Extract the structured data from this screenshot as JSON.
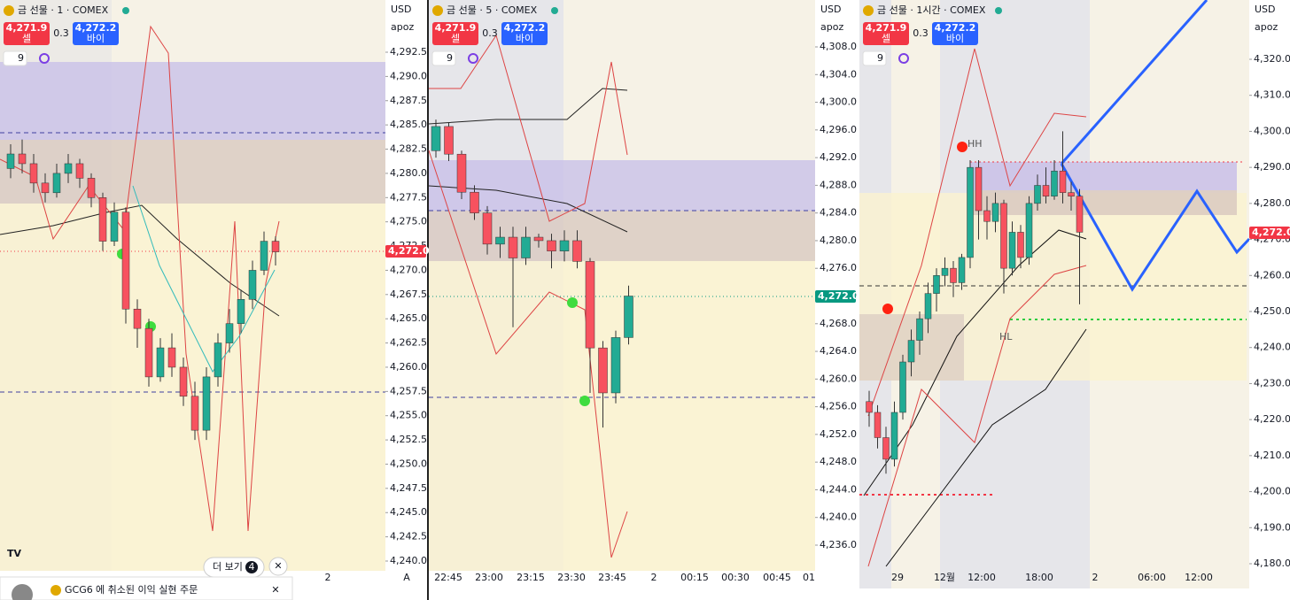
{
  "panels": [
    {
      "title": "금 선물 · 1 · COMEX",
      "sell_price": "4,271.9",
      "sell_label": "셀",
      "spread": "0.3",
      "buy_price": "4,272.2",
      "buy_label": "바이",
      "interval": "9",
      "currency": "USD",
      "scale_name": "apoz",
      "price_tag": "4,272.0",
      "yticks": [
        {
          "value": 4240.0,
          "label": "4,240.0"
        },
        {
          "value": 4242.5,
          "label": "4,242.5"
        },
        {
          "value": 4245.0,
          "label": "4,245.0"
        },
        {
          "value": 4247.5,
          "label": "4,247.5"
        },
        {
          "value": 4250.0,
          "label": "4,250.0"
        },
        {
          "value": 4252.5,
          "label": "4,252.5"
        },
        {
          "value": 4255.0,
          "label": "4,255.0"
        },
        {
          "value": 4257.5,
          "label": "4,257.5"
        },
        {
          "value": 4260.0,
          "label": "4,260.0"
        },
        {
          "value": 4262.5,
          "label": "4,262.5"
        },
        {
          "value": 4265.0,
          "label": "4,265.0"
        },
        {
          "value": 4267.5,
          "label": "4,267.5"
        },
        {
          "value": 4270.0,
          "label": "4,270.0"
        },
        {
          "value": 4272.5,
          "label": "4,272.5"
        },
        {
          "value": 4275.0,
          "label": "4,275.0"
        },
        {
          "value": 4277.5,
          "label": "4,277.5"
        },
        {
          "value": 4280.0,
          "label": "4,280.0"
        },
        {
          "value": 4282.5,
          "label": "4,282.5"
        },
        {
          "value": 4285.0,
          "label": "4,285.0"
        },
        {
          "value": 4287.5,
          "label": "4,287.5"
        },
        {
          "value": 4290.0,
          "label": "4,290.0"
        },
        {
          "value": 4292.5,
          "label": "4,292.5"
        }
      ],
      "xlabels": [
        "2",
        "A"
      ],
      "candles": {
        "open": [
          4280.5,
          4282.0,
          4281.0,
          4279.0,
          4278.0,
          4280.0,
          4281.0,
          4279.5,
          4277.5,
          4273.0,
          4276.0,
          4266.0,
          4264.0,
          4259.0,
          4262.0,
          4260.0,
          4257.0,
          4253.5,
          4259.0,
          4262.5,
          4264.5,
          4267.0,
          4270.0,
          4273.0
        ],
        "high": [
          4283.0,
          4283.5,
          4282.0,
          4280.0,
          4281.0,
          4282.0,
          4281.5,
          4280.0,
          4278.0,
          4277.0,
          4276.5,
          4267.0,
          4265.0,
          4263.0,
          4263.5,
          4261.0,
          4258.5,
          4260.0,
          4263.5,
          4266.0,
          4268.0,
          4271.0,
          4274.0,
          4273.5
        ],
        "low": [
          4279.5,
          4280.0,
          4278.0,
          4277.0,
          4277.5,
          4279.0,
          4278.5,
          4276.5,
          4272.0,
          4272.5,
          4264.5,
          4262.0,
          4258.0,
          4258.5,
          4259.0,
          4256.0,
          4252.5,
          4252.5,
          4258.0,
          4261.5,
          4263.5,
          4266.0,
          4269.5,
          4270.5
        ],
        "close": [
          4282.0,
          4281.0,
          4279.0,
          4278.0,
          4280.0,
          4281.0,
          4279.5,
          4277.5,
          4273.0,
          4276.0,
          4266.0,
          4264.0,
          4259.0,
          4262.0,
          4260.0,
          4257.0,
          4253.5,
          4259.0,
          4262.5,
          4264.5,
          4267.0,
          4270.0,
          4273.0,
          4271.9
        ]
      }
    },
    {
      "title": "금 선물 · 5 · COMEX",
      "sell_price": "4,271.9",
      "sell_label": "셀",
      "spread": "0.3",
      "buy_price": "4,272.2",
      "buy_label": "바이",
      "interval": "9",
      "currency": "USD",
      "scale_name": "apoz",
      "price_tag": "4,272.0",
      "yticks": [
        {
          "value": 4236.0,
          "label": "4,236.0"
        },
        {
          "value": 4240.0,
          "label": "4,240.0"
        },
        {
          "value": 4244.0,
          "label": "4,244.0"
        },
        {
          "value": 4248.0,
          "label": "4,248.0"
        },
        {
          "value": 4252.0,
          "label": "4,252.0"
        },
        {
          "value": 4256.0,
          "label": "4,256.0"
        },
        {
          "value": 4260.0,
          "label": "4,260.0"
        },
        {
          "value": 4264.0,
          "label": "4,264.0"
        },
        {
          "value": 4268.0,
          "label": "4,268.0"
        },
        {
          "value": 4272.0,
          "label": "4,272.0"
        },
        {
          "value": 4276.0,
          "label": "4,276.0"
        },
        {
          "value": 4280.0,
          "label": "4,280.0"
        },
        {
          "value": 4284.0,
          "label": "4,284.0"
        },
        {
          "value": 4288.0,
          "label": "4,288.0"
        },
        {
          "value": 4292.0,
          "label": "4,292.0"
        },
        {
          "value": 4296.0,
          "label": "4,296.0"
        },
        {
          "value": 4300.0,
          "label": "4,300.0"
        },
        {
          "value": 4304.0,
          "label": "4,304.0"
        },
        {
          "value": 4308.0,
          "label": "4,308.0"
        }
      ],
      "xlabels": [
        "22:45",
        "23:00",
        "23:15",
        "23:30",
        "23:45",
        "2",
        "00:15",
        "00:30",
        "00:45",
        "01"
      ],
      "candles": {
        "open": [
          4293.0,
          4296.5,
          4292.5,
          4287.0,
          4284.0,
          4279.5,
          4280.5,
          4277.5,
          4280.5,
          4280.0,
          4278.5,
          4280.0,
          4277.0,
          4264.5,
          4258.0,
          4266.0
        ],
        "high": [
          4297.5,
          4297.0,
          4293.0,
          4288.0,
          4285.0,
          4282.0,
          4282.0,
          4282.0,
          4281.0,
          4281.0,
          4281.5,
          4281.5,
          4277.5,
          4265.5,
          4267.0,
          4273.5
        ],
        "low": [
          4292.0,
          4291.5,
          4286.0,
          4283.0,
          4278.0,
          4277.5,
          4267.5,
          4276.5,
          4279.0,
          4276.0,
          4277.0,
          4276.0,
          4258.0,
          4253.0,
          4256.5,
          4265.0
        ],
        "close": [
          4296.5,
          4292.5,
          4287.0,
          4284.0,
          4279.5,
          4280.5,
          4277.5,
          4280.5,
          4280.0,
          4278.5,
          4280.0,
          4277.0,
          4264.5,
          4258.0,
          4266.0,
          4272.0
        ]
      }
    },
    {
      "title": "금 선물 · 1시간 · COMEX",
      "sell_price": "4,271.9",
      "sell_label": "셀",
      "spread": "0.3",
      "buy_price": "4,272.2",
      "buy_label": "바이",
      "interval": "9",
      "currency": "USD",
      "scale_name": "apoz",
      "price_tag": "4,272.0",
      "yticks": [
        {
          "value": 4180.0,
          "label": "4,180.0"
        },
        {
          "value": 4190.0,
          "label": "4,190.0"
        },
        {
          "value": 4200.0,
          "label": "4,200.0"
        },
        {
          "value": 4210.0,
          "label": "4,210.0"
        },
        {
          "value": 4220.0,
          "label": "4,220.0"
        },
        {
          "value": 4230.0,
          "label": "4,230.0"
        },
        {
          "value": 4240.0,
          "label": "4,240.0"
        },
        {
          "value": 4250.0,
          "label": "4,250.0"
        },
        {
          "value": 4260.0,
          "label": "4,260.0"
        },
        {
          "value": 4270.0,
          "label": "4,270.0"
        },
        {
          "value": 4280.0,
          "label": "4,280.0"
        },
        {
          "value": 4290.0,
          "label": "4,290.0"
        },
        {
          "value": 4300.0,
          "label": "4,300.0"
        },
        {
          "value": 4310.0,
          "label": "4,310.0"
        },
        {
          "value": 4320.0,
          "label": "4,320.0"
        }
      ],
      "xlabels": [
        "29",
        "12월",
        "12:00",
        "18:00",
        "2",
        "06:00",
        "12:00"
      ],
      "markers": [
        "HH",
        "HL"
      ],
      "candles": {
        "open": [
          4225.0,
          4222.0,
          4215.0,
          4209.0,
          4222.0,
          4236.0,
          4242.0,
          4248.0,
          4255.0,
          4260.0,
          4262.0,
          4258.0,
          4265.0,
          4290.0,
          4278.0,
          4275.0,
          4280.0,
          4262.0,
          4272.0,
          4265.0,
          4280.0,
          4285.0,
          4282.0,
          4289.0,
          4283.0,
          4282.0
        ],
        "high": [
          4228.0,
          4224.0,
          4218.0,
          4225.0,
          4238.0,
          4245.0,
          4250.0,
          4258.0,
          4262.0,
          4265.0,
          4264.0,
          4266.0,
          4292.0,
          4292.0,
          4282.0,
          4283.0,
          4281.0,
          4275.0,
          4274.0,
          4282.0,
          4288.0,
          4290.0,
          4292.0,
          4300.0,
          4286.0,
          4284.0
        ],
        "low": [
          4218.0,
          4212.0,
          4205.0,
          4207.0,
          4220.0,
          4232.0,
          4238.0,
          4244.0,
          4250.0,
          4257.0,
          4254.0,
          4256.0,
          4262.0,
          4270.0,
          4270.0,
          4272.0,
          4255.0,
          4260.0,
          4262.0,
          4263.0,
          4278.0,
          4280.0,
          4281.0,
          4280.0,
          4278.0,
          4252.0
        ],
        "close": [
          4222.0,
          4215.0,
          4209.0,
          4222.0,
          4236.0,
          4242.0,
          4248.0,
          4255.0,
          4260.0,
          4262.0,
          4258.0,
          4265.0,
          4290.0,
          4278.0,
          4275.0,
          4280.0,
          4262.0,
          4272.0,
          4265.0,
          4280.0,
          4285.0,
          4282.0,
          4289.0,
          4283.0,
          4282.0,
          4272.0
        ]
      }
    }
  ],
  "notification": {
    "more_label": "더 보기",
    "more_count": "4",
    "symbol": "GCG6",
    "message": "에 취소된 이익 실현 주문"
  }
}
